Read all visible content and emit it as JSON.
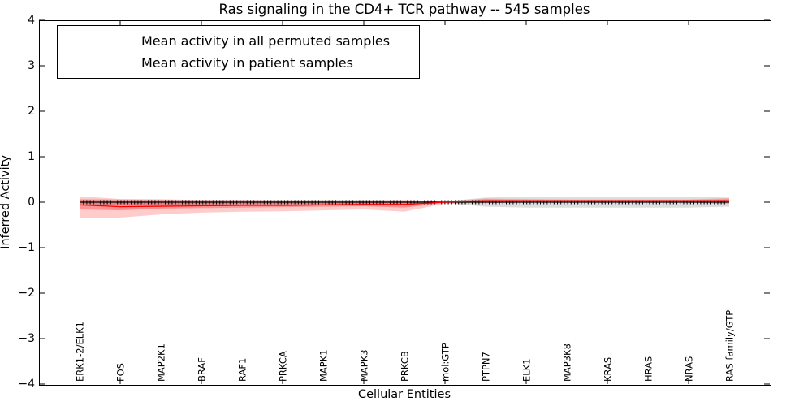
{
  "title": "Ras signaling in the CD4+ TCR pathway -- 545 samples",
  "axes": {
    "xlabel": "Cellular Entities",
    "ylabel": "Inferred Activity",
    "ytick_labels": [
      "4",
      "3",
      "2",
      "1",
      "0",
      "−1",
      "−2",
      "−3",
      "−4"
    ]
  },
  "legend": {
    "items": [
      {
        "label": "Mean activity in all permuted samples",
        "color": "#000000"
      },
      {
        "label": "Mean activity in patient samples",
        "color": "#ff0000"
      }
    ]
  },
  "chart_data": {
    "type": "line",
    "title": "Ras signaling in the CD4+ TCR pathway -- 545 samples",
    "xlabel": "Cellular Entities",
    "ylabel": "Inferred Activity",
    "ylim": [
      -4,
      4
    ],
    "yticks": [
      4,
      3,
      2,
      1,
      0,
      -1,
      -2,
      -3,
      -4
    ],
    "grid": false,
    "legend_position": "upper left",
    "categories": [
      "ERK1-2/ELK1",
      "FOS",
      "MAP2K1",
      "BRAF",
      "RAF1",
      "PRKCA",
      "MAPK1",
      "MAPK3",
      "PRKCB",
      "mol:GTP",
      "PTPN7",
      "ELK1",
      "MAP3K8",
      "KRAS",
      "HRAS",
      "NRAS",
      "RAS family/GTP"
    ],
    "xtick_indices": [
      1,
      3,
      5,
      7,
      9,
      11,
      13,
      15
    ],
    "series": [
      {
        "name": "Mean activity in all permuted samples",
        "color": "#000000",
        "marker": "|",
        "values": [
          0,
          0,
          0,
          0,
          0,
          0,
          0,
          0,
          0,
          0,
          0,
          0,
          0,
          0,
          0,
          0,
          0
        ]
      },
      {
        "name": "Mean activity in patient samples",
        "color": "#ff0000",
        "marker": null,
        "values": [
          -0.06,
          -0.1,
          -0.09,
          -0.08,
          -0.07,
          -0.07,
          -0.06,
          -0.05,
          -0.05,
          0.0,
          0.03,
          0.03,
          0.03,
          0.03,
          0.03,
          0.03,
          0.03
        ]
      }
    ],
    "bands": [
      {
        "name": "permuted-samples-std",
        "color": "rgba(0,0,0,0.13)",
        "upper": [
          0.07,
          0.06,
          0.06,
          0.05,
          0.05,
          0.05,
          0.05,
          0.05,
          0.04,
          0.02,
          0.1,
          0.12,
          0.12,
          0.12,
          0.12,
          0.12,
          0.1
        ],
        "lower": [
          -0.07,
          -0.06,
          -0.06,
          -0.05,
          -0.05,
          -0.05,
          -0.05,
          -0.05,
          -0.04,
          -0.02,
          -0.1,
          -0.12,
          -0.12,
          -0.12,
          -0.12,
          -0.12,
          -0.1
        ]
      },
      {
        "name": "patient-samples-std-outer",
        "color": "rgba(255,0,0,0.20)",
        "upper": [
          0.13,
          0.07,
          0.06,
          0.05,
          0.05,
          0.04,
          0.04,
          0.04,
          0.05,
          0.02,
          0.08,
          0.07,
          0.06,
          0.06,
          0.06,
          0.06,
          0.09
        ],
        "lower": [
          -0.36,
          -0.34,
          -0.27,
          -0.23,
          -0.21,
          -0.2,
          -0.18,
          -0.16,
          -0.21,
          -0.03,
          -0.02,
          -0.01,
          -0.01,
          -0.01,
          -0.01,
          -0.01,
          -0.04
        ]
      },
      {
        "name": "patient-samples-std-inner",
        "color": "rgba(255,0,0,0.28)",
        "upper": [
          0.05,
          0.04,
          0.04,
          0.03,
          0.03,
          0.03,
          0.03,
          0.03,
          0.03,
          0.01,
          0.06,
          0.05,
          0.05,
          0.05,
          0.05,
          0.05,
          0.06
        ],
        "lower": [
          -0.16,
          -0.18,
          -0.14,
          -0.13,
          -0.12,
          -0.11,
          -0.1,
          -0.09,
          -0.12,
          -0.01,
          0.0,
          0.01,
          0.01,
          0.01,
          0.01,
          0.01,
          -0.01
        ]
      }
    ]
  }
}
